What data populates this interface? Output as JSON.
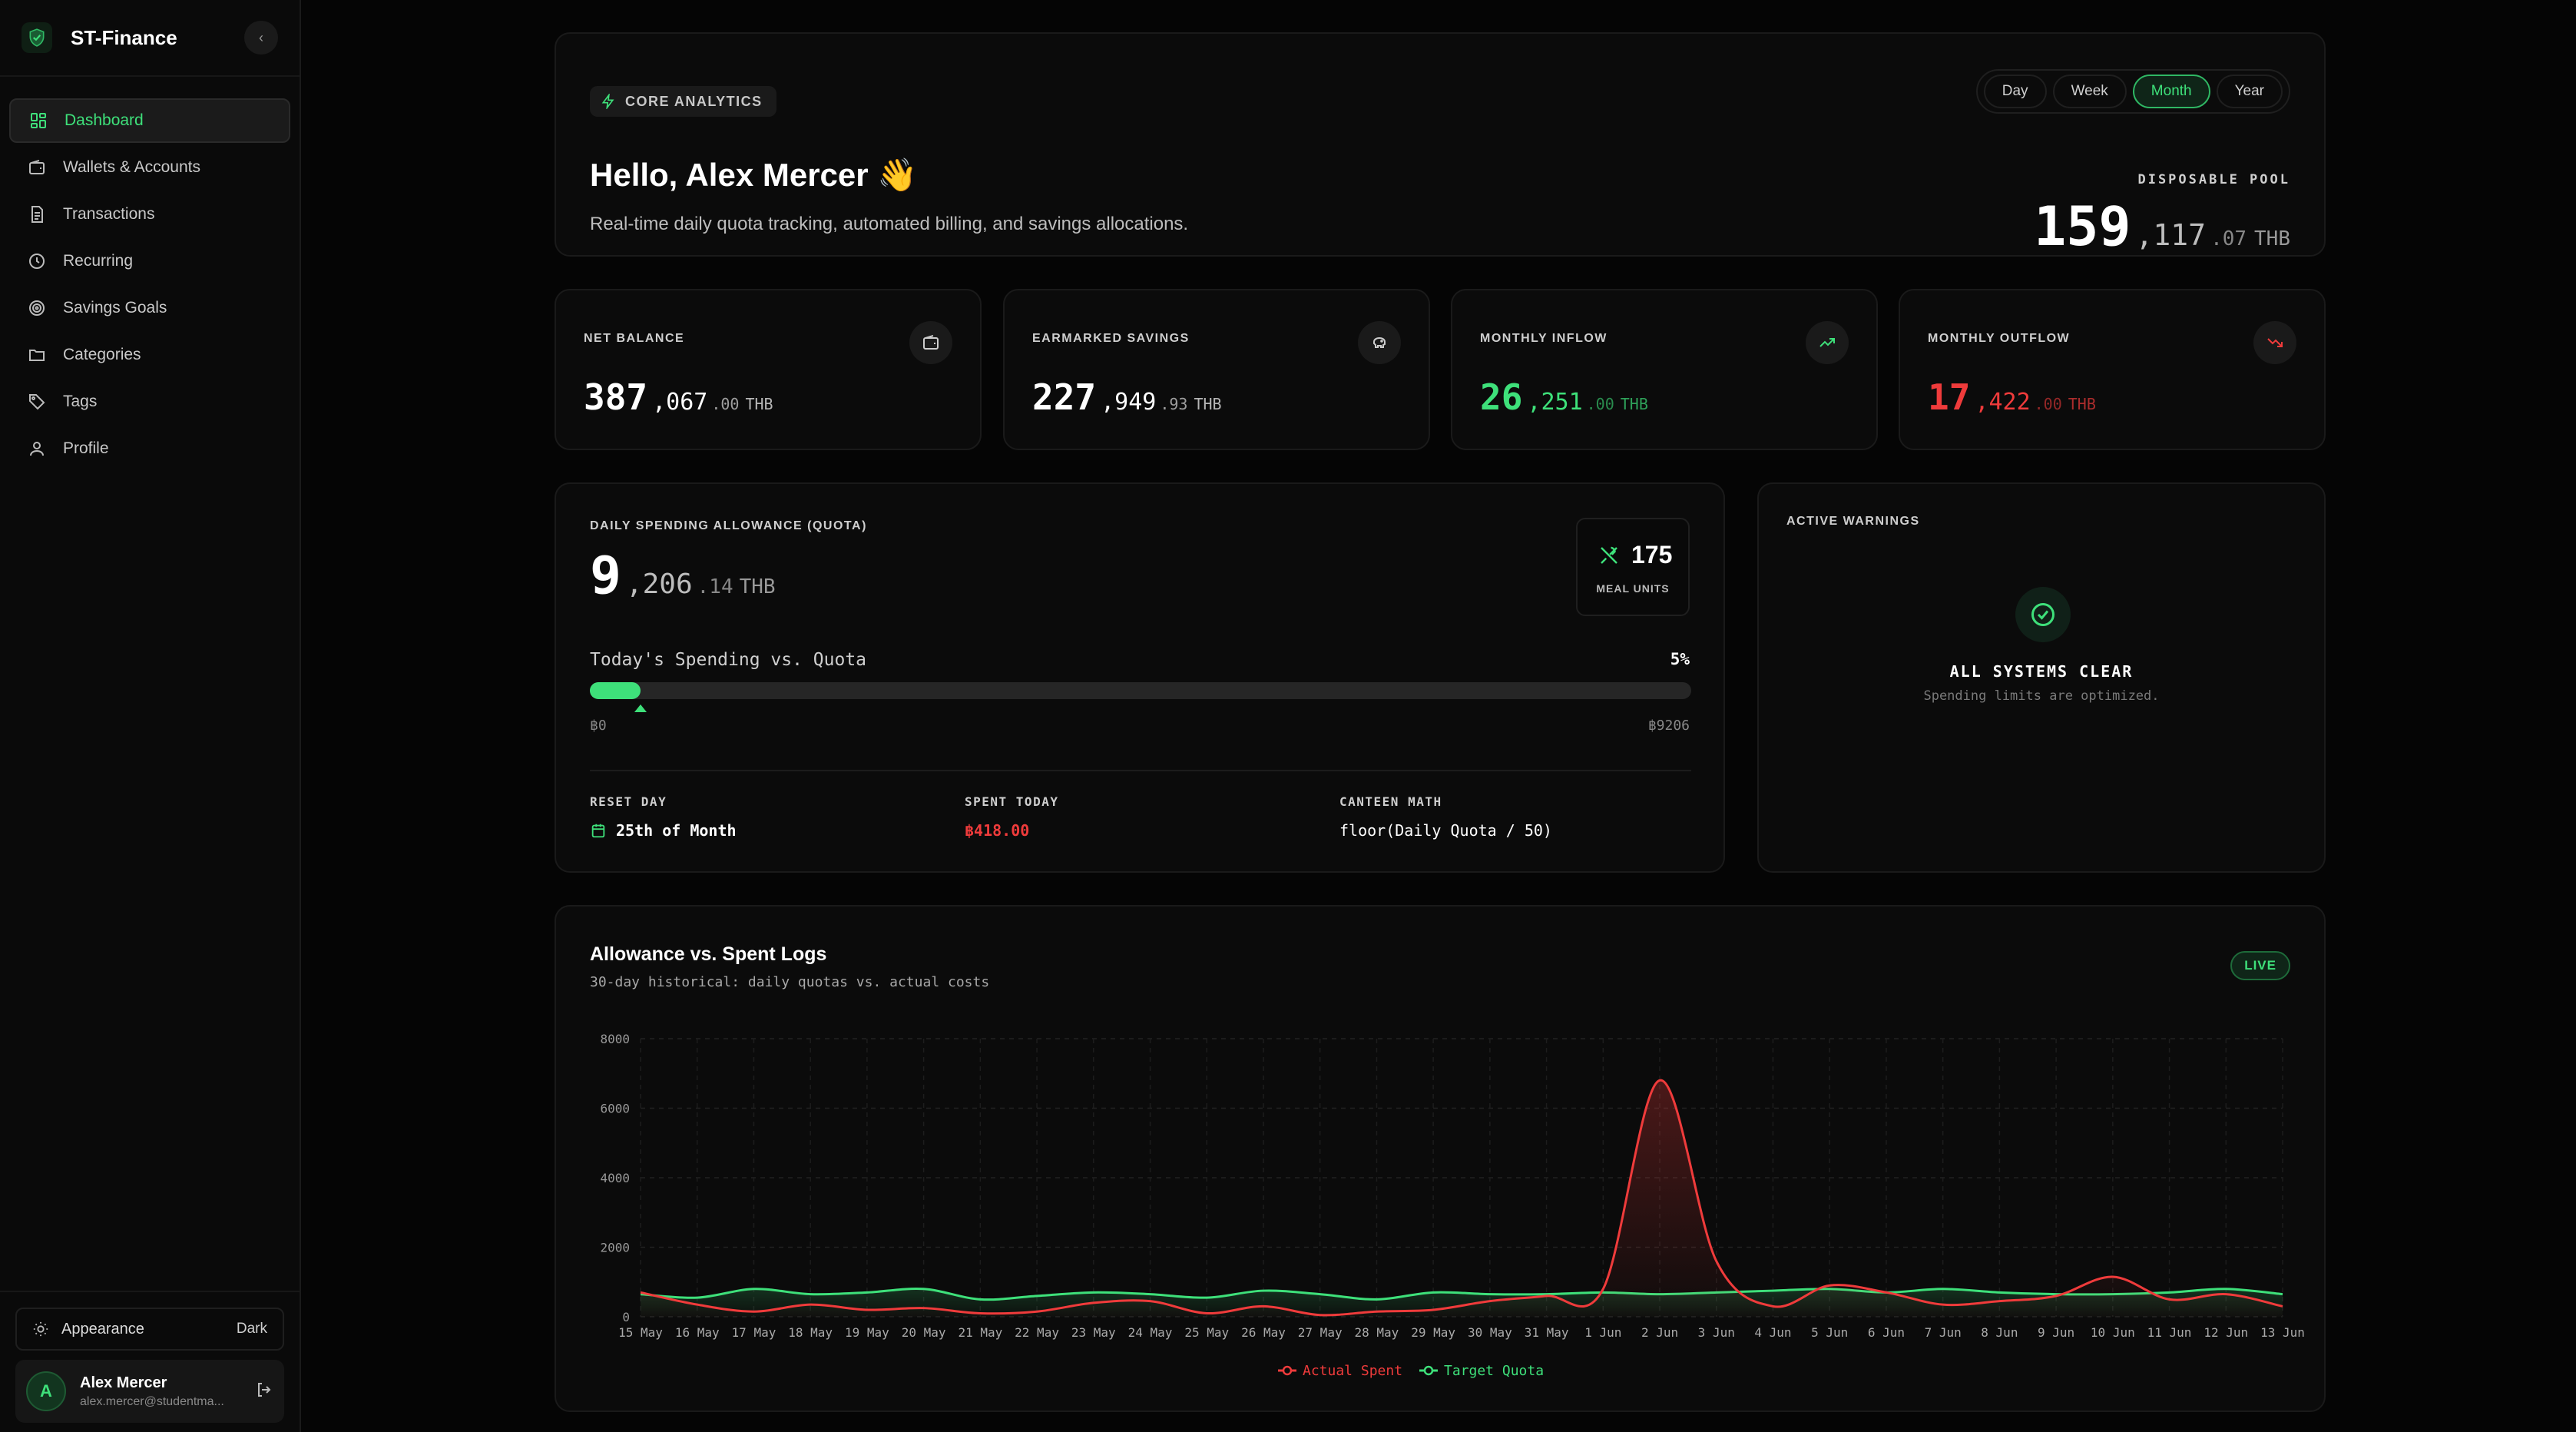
{
  "app": {
    "name": "ST-Finance",
    "collapse_glyph": "‹"
  },
  "sidebar": {
    "items": [
      {
        "label": "Dashboard",
        "icon": "dashboard-icon",
        "active": true
      },
      {
        "label": "Wallets & Accounts",
        "icon": "wallet-icon"
      },
      {
        "label": "Transactions",
        "icon": "document-icon"
      },
      {
        "label": "Recurring",
        "icon": "clock-icon"
      },
      {
        "label": "Savings Goals",
        "icon": "target-icon"
      },
      {
        "label": "Categories",
        "icon": "folder-icon"
      },
      {
        "label": "Tags",
        "icon": "tag-icon"
      },
      {
        "label": "Profile",
        "icon": "user-icon"
      }
    ],
    "appearance": {
      "label": "Appearance",
      "mode": "Dark"
    },
    "user": {
      "initial": "A",
      "name": "Alex Mercer",
      "email": "alex.mercer@studentma..."
    }
  },
  "header": {
    "badge": "CORE ANALYTICS",
    "greeting": "Hello, Alex Mercer 👋",
    "subtitle": "Real-time daily quota tracking, automated billing, and savings allocations.",
    "periods": [
      "Day",
      "Week",
      "Month",
      "Year"
    ],
    "active_period": "Month",
    "pool": {
      "label": "DISPOSABLE POOL",
      "int": "159",
      "mid": ",117",
      "dec": ".07",
      "unit": "THB"
    }
  },
  "stats": [
    {
      "label": "NET BALANCE",
      "int": "387",
      "mid": ",067",
      "dec": ".00",
      "unit": "THB",
      "color": "#ffffff",
      "icon": "wallet-icon"
    },
    {
      "label": "EARMARKED SAVINGS",
      "int": "227",
      "mid": ",949",
      "dec": ".93",
      "unit": "THB",
      "color": "#ffffff",
      "icon": "piggy-bank-icon"
    },
    {
      "label": "MONTHLY INFLOW",
      "int": "26",
      "mid": ",251",
      "dec": ".00",
      "unit": "THB",
      "color": "#3ee07a",
      "icon": "trending-up-icon"
    },
    {
      "label": "MONTHLY OUTFLOW",
      "int": "17",
      "mid": ",422",
      "dec": ".00",
      "unit": "THB",
      "color": "#ef3b3b",
      "icon": "trending-down-icon"
    }
  ],
  "quota": {
    "title": "DAILY SPENDING ALLOWANCE (QUOTA)",
    "int": "9",
    "mid": ",206",
    "dec": ".14",
    "unit": "THB",
    "meal_units": "175",
    "meal_label": "MEAL UNITS",
    "spend_label": "Today's Spending vs. Quota",
    "percent_text": "5%",
    "progress": 0.045,
    "min_label": "฿0",
    "max_label": "฿9206",
    "reset_label": "RESET DAY",
    "reset_value": "25th of Month",
    "spent_label": "SPENT TODAY",
    "spent_value": "฿418.00",
    "math_label": "CANTEEN MATH",
    "math_value": "floor(Daily Quota / 50)"
  },
  "warnings": {
    "title": "ACTIVE WARNINGS",
    "headline": "ALL SYSTEMS CLEAR",
    "sub": "Spending limits are optimized."
  },
  "chart": {
    "title": "Allowance vs. Spent Logs",
    "subtitle": "30-day historical: daily quotas vs. actual costs",
    "badge": "LIVE",
    "colors": {
      "spent": "#ef3b3b",
      "quota": "#3ee07a"
    }
  },
  "chart_data": {
    "type": "area",
    "categories": [
      "15 May",
      "16 May",
      "17 May",
      "18 May",
      "19 May",
      "20 May",
      "21 May",
      "22 May",
      "23 May",
      "24 May",
      "25 May",
      "26 May",
      "27 May",
      "28 May",
      "29 May",
      "30 May",
      "31 May",
      "1 Jun",
      "2 Jun",
      "3 Jun",
      "4 Jun",
      "5 Jun",
      "6 Jun",
      "7 Jun",
      "8 Jun",
      "9 Jun",
      "10 Jun",
      "11 Jun",
      "12 Jun",
      "13 Jun"
    ],
    "ylim": [
      0,
      8000
    ],
    "yticks": [
      0,
      2000,
      4000,
      6000,
      8000
    ],
    "grid": true,
    "legend": "bottom-center",
    "series": [
      {
        "name": "Actual Spent",
        "values": [
          700,
          350,
          150,
          350,
          200,
          250,
          100,
          150,
          400,
          450,
          100,
          300,
          50,
          150,
          200,
          450,
          600,
          800,
          6800,
          1600,
          300,
          900,
          700,
          350,
          450,
          600,
          1150,
          500,
          650,
          300
        ]
      },
      {
        "name": "Target Quota",
        "values": [
          650,
          550,
          800,
          650,
          700,
          800,
          500,
          600,
          700,
          650,
          550,
          750,
          650,
          500,
          700,
          650,
          650,
          700,
          650,
          700,
          750,
          800,
          700,
          800,
          700,
          650,
          650,
          700,
          800,
          650
        ]
      }
    ]
  }
}
